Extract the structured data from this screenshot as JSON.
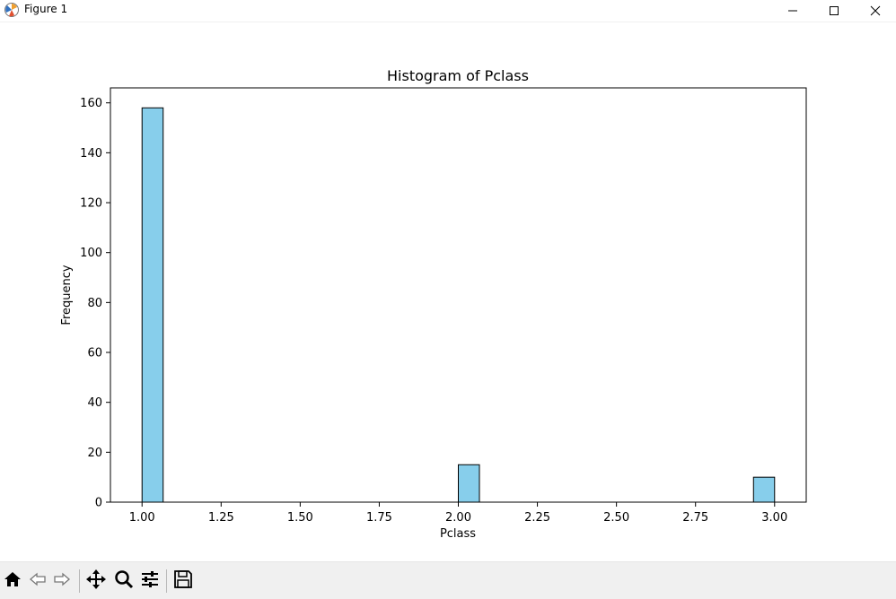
{
  "window": {
    "title": "Figure 1",
    "icons": [
      "matplotlib-logo-icon",
      "minimize-icon",
      "maximize-icon",
      "close-icon"
    ]
  },
  "toolbar": {
    "buttons": [
      "home-icon",
      "back-icon",
      "forward-icon",
      "pan-icon",
      "zoom-icon",
      "configure-subplots-icon",
      "save-icon"
    ]
  },
  "colors": {
    "bar_fill": "#87ceeb",
    "bar_edge": "#000000",
    "toolbar_bg": "#f0f0f0"
  },
  "chart_data": {
    "type": "bar",
    "title": "Histogram of Pclass",
    "xlabel": "Pclass",
    "ylabel": "Frequency",
    "bins": [
      {
        "x0": 1.0,
        "x1": 1.0667,
        "count": 158
      },
      {
        "x0": 2.0,
        "x1": 2.0667,
        "count": 15
      },
      {
        "x0": 2.9333,
        "x1": 3.0,
        "count": 10
      }
    ],
    "xlim": [
      0.9,
      3.1
    ],
    "ylim": [
      0,
      166
    ],
    "xticks": [
      1.0,
      1.25,
      1.5,
      1.75,
      2.0,
      2.25,
      2.5,
      2.75,
      3.0
    ],
    "xtick_labels": [
      "1.00",
      "1.25",
      "1.50",
      "1.75",
      "2.00",
      "2.25",
      "2.50",
      "2.75",
      "3.00"
    ],
    "yticks": [
      0,
      20,
      40,
      60,
      80,
      100,
      120,
      140,
      160
    ],
    "ytick_labels": [
      "0",
      "20",
      "40",
      "60",
      "80",
      "100",
      "120",
      "140",
      "160"
    ],
    "grid": false,
    "legend": "none"
  }
}
